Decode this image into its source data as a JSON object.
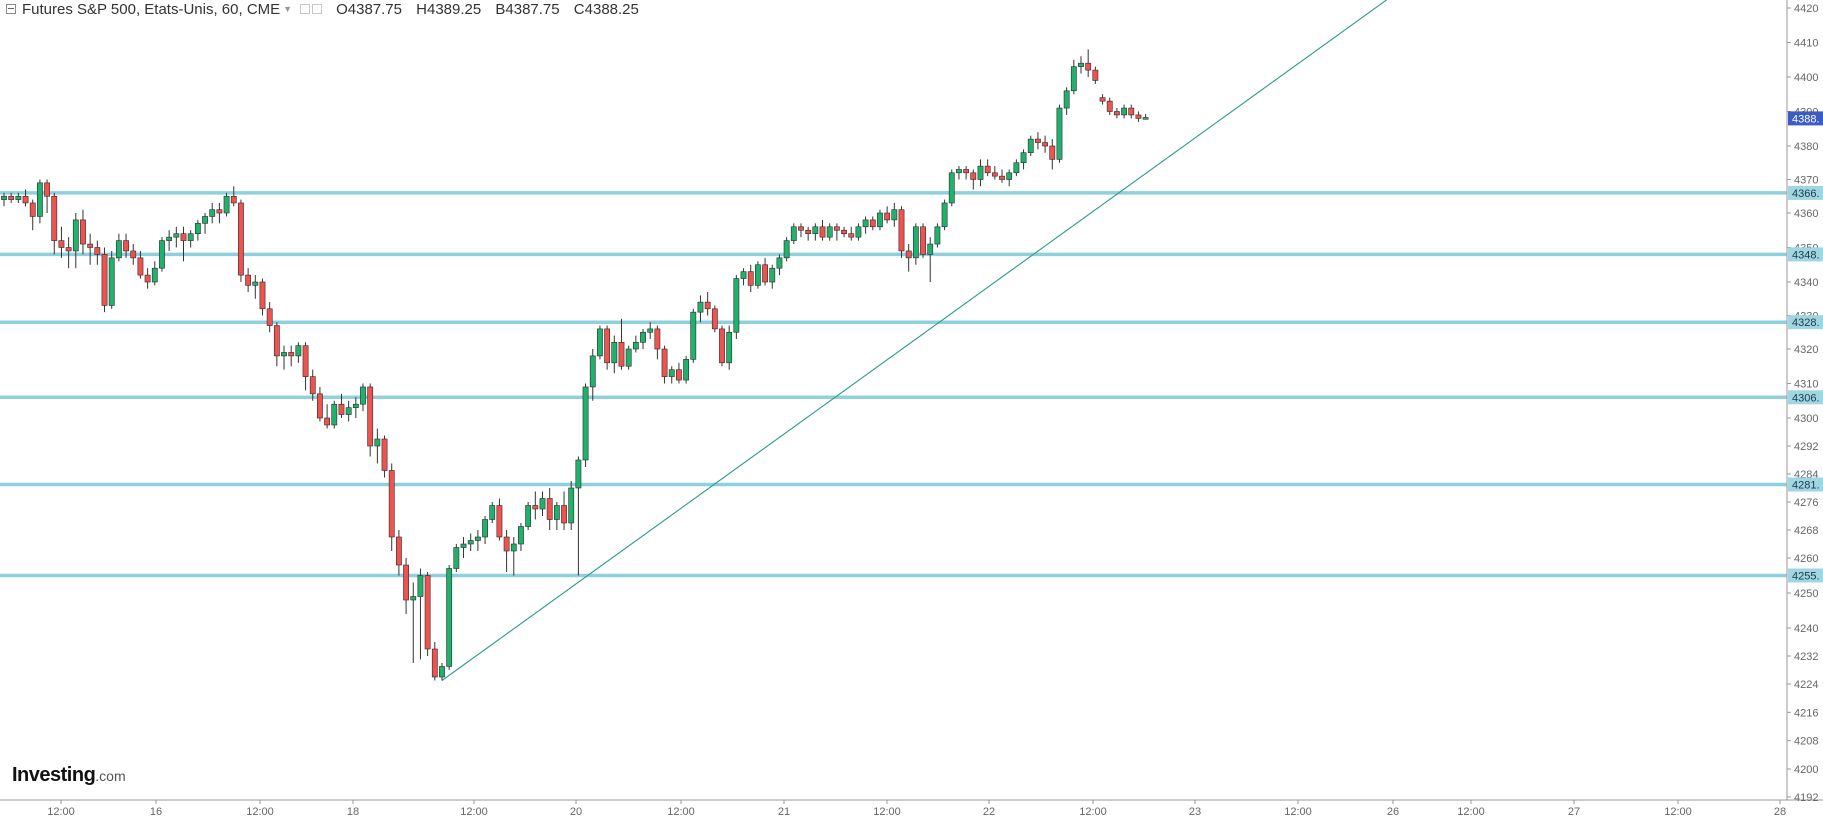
{
  "header": {
    "symbol": "Futures S&P 500, Etats-Unis, 60, CME",
    "open": "O4387.75",
    "high": "H4389.25",
    "low": "B4387.75",
    "close": "C4388.25"
  },
  "logo": {
    "name": "Investing",
    "suffix": ".com"
  },
  "chart_data": {
    "type": "candlestick",
    "y_ticks": [
      4192,
      4200,
      4208,
      4216,
      4224,
      4232,
      4240,
      4250,
      4260,
      4268,
      4276,
      4284,
      4292,
      4300,
      4310,
      4320,
      4330,
      4340,
      4350,
      4360,
      4370,
      4380,
      4390,
      4400,
      4410,
      4420
    ],
    "x_ticks": [
      "12:00",
      "16",
      "12:00",
      "18",
      "12:00",
      "20",
      "12:00",
      "21",
      "12:00",
      "22",
      "12:00",
      "23",
      "12:00",
      "26",
      "12:00",
      "27",
      "12:00",
      "28"
    ],
    "horizontal_levels": [
      {
        "value": 4366,
        "label": "4366."
      },
      {
        "value": 4348,
        "label": "4348."
      },
      {
        "value": 4328,
        "label": "4328."
      },
      {
        "value": 4306,
        "label": "4306."
      },
      {
        "value": 4281,
        "label": "4281."
      },
      {
        "value": 4255,
        "label": "4255."
      }
    ],
    "last_price": {
      "value": 4388,
      "label": "4388."
    },
    "trendline": {
      "from": {
        "bar": 61,
        "price": 4225
      },
      "to": {
        "bar": 195,
        "price": 4426
      }
    },
    "candles": [
      {
        "o": 4364,
        "h": 4366,
        "l": 4362,
        "c": 4365
      },
      {
        "o": 4365,
        "h": 4366,
        "l": 4363,
        "c": 4364
      },
      {
        "o": 4364,
        "h": 4366,
        "l": 4363,
        "c": 4365
      },
      {
        "o": 4365,
        "h": 4367,
        "l": 4362,
        "c": 4363
      },
      {
        "o": 4363,
        "h": 4364,
        "l": 4355,
        "c": 4359
      },
      {
        "o": 4359,
        "h": 4370,
        "l": 4357,
        "c": 4369
      },
      {
        "o": 4369,
        "h": 4370,
        "l": 4360,
        "c": 4365
      },
      {
        "o": 4365,
        "h": 4366,
        "l": 4348,
        "c": 4352
      },
      {
        "o": 4352,
        "h": 4356,
        "l": 4347,
        "c": 4350
      },
      {
        "o": 4350,
        "h": 4353,
        "l": 4344,
        "c": 4349
      },
      {
        "o": 4349,
        "h": 4360,
        "l": 4344,
        "c": 4358
      },
      {
        "o": 4358,
        "h": 4361,
        "l": 4348,
        "c": 4351
      },
      {
        "o": 4351,
        "h": 4354,
        "l": 4345,
        "c": 4350
      },
      {
        "o": 4350,
        "h": 4352,
        "l": 4345,
        "c": 4348
      },
      {
        "o": 4348,
        "h": 4350,
        "l": 4331,
        "c": 4333
      },
      {
        "o": 4333,
        "h": 4349,
        "l": 4332,
        "c": 4347
      },
      {
        "o": 4347,
        "h": 4354,
        "l": 4346,
        "c": 4352
      },
      {
        "o": 4352,
        "h": 4354,
        "l": 4347,
        "c": 4349
      },
      {
        "o": 4349,
        "h": 4351,
        "l": 4345,
        "c": 4347
      },
      {
        "o": 4347,
        "h": 4349,
        "l": 4341,
        "c": 4342
      },
      {
        "o": 4342,
        "h": 4344,
        "l": 4338,
        "c": 4340
      },
      {
        "o": 4340,
        "h": 4346,
        "l": 4339,
        "c": 4344
      },
      {
        "o": 4344,
        "h": 4353,
        "l": 4343,
        "c": 4352
      },
      {
        "o": 4352,
        "h": 4355,
        "l": 4349,
        "c": 4353
      },
      {
        "o": 4353,
        "h": 4356,
        "l": 4350,
        "c": 4354
      },
      {
        "o": 4354,
        "h": 4356,
        "l": 4346,
        "c": 4352
      },
      {
        "o": 4352,
        "h": 4355,
        "l": 4350,
        "c": 4354
      },
      {
        "o": 4354,
        "h": 4358,
        "l": 4352,
        "c": 4357
      },
      {
        "o": 4357,
        "h": 4360,
        "l": 4354,
        "c": 4359
      },
      {
        "o": 4359,
        "h": 4363,
        "l": 4357,
        "c": 4361
      },
      {
        "o": 4361,
        "h": 4363,
        "l": 4357,
        "c": 4360
      },
      {
        "o": 4360,
        "h": 4366,
        "l": 4359,
        "c": 4365
      },
      {
        "o": 4365,
        "h": 4368,
        "l": 4362,
        "c": 4363
      },
      {
        "o": 4363,
        "h": 4364,
        "l": 4340,
        "c": 4342
      },
      {
        "o": 4342,
        "h": 4344,
        "l": 4337,
        "c": 4339
      },
      {
        "o": 4339,
        "h": 4342,
        "l": 4335,
        "c": 4340
      },
      {
        "o": 4340,
        "h": 4341,
        "l": 4330,
        "c": 4332
      },
      {
        "o": 4332,
        "h": 4334,
        "l": 4325,
        "c": 4327
      },
      {
        "o": 4327,
        "h": 4328,
        "l": 4315,
        "c": 4318
      },
      {
        "o": 4318,
        "h": 4321,
        "l": 4314,
        "c": 4319
      },
      {
        "o": 4319,
        "h": 4321,
        "l": 4315,
        "c": 4318
      },
      {
        "o": 4318,
        "h": 4322,
        "l": 4316,
        "c": 4321
      },
      {
        "o": 4321,
        "h": 4322,
        "l": 4308,
        "c": 4312
      },
      {
        "o": 4312,
        "h": 4314,
        "l": 4305,
        "c": 4307
      },
      {
        "o": 4307,
        "h": 4309,
        "l": 4299,
        "c": 4300
      },
      {
        "o": 4300,
        "h": 4304,
        "l": 4297,
        "c": 4298
      },
      {
        "o": 4298,
        "h": 4305,
        "l": 4297,
        "c": 4304
      },
      {
        "o": 4304,
        "h": 4307,
        "l": 4300,
        "c": 4301
      },
      {
        "o": 4301,
        "h": 4305,
        "l": 4299,
        "c": 4303
      },
      {
        "o": 4303,
        "h": 4306,
        "l": 4300,
        "c": 4304
      },
      {
        "o": 4304,
        "h": 4310,
        "l": 4302,
        "c": 4309
      },
      {
        "o": 4309,
        "h": 4310,
        "l": 4289,
        "c": 4292
      },
      {
        "o": 4292,
        "h": 4297,
        "l": 4287,
        "c": 4294
      },
      {
        "o": 4294,
        "h": 4295,
        "l": 4283,
        "c": 4285
      },
      {
        "o": 4285,
        "h": 4287,
        "l": 4262,
        "c": 4266
      },
      {
        "o": 4266,
        "h": 4268,
        "l": 4255,
        "c": 4258
      },
      {
        "o": 4258,
        "h": 4260,
        "l": 4244,
        "c": 4248
      },
      {
        "o": 4248,
        "h": 4253,
        "l": 4230,
        "c": 4249
      },
      {
        "o": 4249,
        "h": 4257,
        "l": 4231,
        "c": 4255
      },
      {
        "o": 4255,
        "h": 4256,
        "l": 4232,
        "c": 4234
      },
      {
        "o": 4234,
        "h": 4236,
        "l": 4225,
        "c": 4226
      },
      {
        "o": 4226,
        "h": 4230,
        "l": 4225,
        "c": 4229
      },
      {
        "o": 4229,
        "h": 4258,
        "l": 4228,
        "c": 4257
      },
      {
        "o": 4257,
        "h": 4264,
        "l": 4256,
        "c": 4263
      },
      {
        "o": 4263,
        "h": 4266,
        "l": 4260,
        "c": 4264
      },
      {
        "o": 4264,
        "h": 4267,
        "l": 4262,
        "c": 4265
      },
      {
        "o": 4265,
        "h": 4268,
        "l": 4262,
        "c": 4266
      },
      {
        "o": 4266,
        "h": 4272,
        "l": 4264,
        "c": 4271
      },
      {
        "o": 4271,
        "h": 4276,
        "l": 4270,
        "c": 4275
      },
      {
        "o": 4275,
        "h": 4277,
        "l": 4265,
        "c": 4266
      },
      {
        "o": 4266,
        "h": 4268,
        "l": 4256,
        "c": 4262
      },
      {
        "o": 4262,
        "h": 4266,
        "l": 4255,
        "c": 4264
      },
      {
        "o": 4264,
        "h": 4270,
        "l": 4262,
        "c": 4269
      },
      {
        "o": 4269,
        "h": 4276,
        "l": 4268,
        "c": 4275
      },
      {
        "o": 4275,
        "h": 4279,
        "l": 4271,
        "c": 4274
      },
      {
        "o": 4274,
        "h": 4279,
        "l": 4272,
        "c": 4277
      },
      {
        "o": 4277,
        "h": 4280,
        "l": 4268,
        "c": 4271
      },
      {
        "o": 4271,
        "h": 4276,
        "l": 4268,
        "c": 4275
      },
      {
        "o": 4275,
        "h": 4279,
        "l": 4268,
        "c": 4270
      },
      {
        "o": 4270,
        "h": 4282,
        "l": 4268,
        "c": 4280
      },
      {
        "o": 4280,
        "h": 4289,
        "l": 4255,
        "c": 4288
      },
      {
        "o": 4288,
        "h": 4310,
        "l": 4286,
        "c": 4309
      },
      {
        "o": 4309,
        "h": 4320,
        "l": 4305,
        "c": 4318
      },
      {
        "o": 4318,
        "h": 4327,
        "l": 4317,
        "c": 4326
      },
      {
        "o": 4326,
        "h": 4327,
        "l": 4314,
        "c": 4316
      },
      {
        "o": 4316,
        "h": 4324,
        "l": 4313,
        "c": 4322
      },
      {
        "o": 4322,
        "h": 4329,
        "l": 4314,
        "c": 4315
      },
      {
        "o": 4315,
        "h": 4321,
        "l": 4314,
        "c": 4320
      },
      {
        "o": 4320,
        "h": 4324,
        "l": 4319,
        "c": 4322
      },
      {
        "o": 4322,
        "h": 4326,
        "l": 4320,
        "c": 4325
      },
      {
        "o": 4325,
        "h": 4328,
        "l": 4323,
        "c": 4326
      },
      {
        "o": 4326,
        "h": 4327,
        "l": 4317,
        "c": 4320
      },
      {
        "o": 4320,
        "h": 4321,
        "l": 4310,
        "c": 4312
      },
      {
        "o": 4312,
        "h": 4315,
        "l": 4310,
        "c": 4314
      },
      {
        "o": 4314,
        "h": 4316,
        "l": 4310,
        "c": 4311
      },
      {
        "o": 4311,
        "h": 4318,
        "l": 4310,
        "c": 4317
      },
      {
        "o": 4317,
        "h": 4332,
        "l": 4316,
        "c": 4331
      },
      {
        "o": 4331,
        "h": 4336,
        "l": 4328,
        "c": 4334
      },
      {
        "o": 4334,
        "h": 4337,
        "l": 4330,
        "c": 4332
      },
      {
        "o": 4332,
        "h": 4333,
        "l": 4325,
        "c": 4326
      },
      {
        "o": 4326,
        "h": 4327,
        "l": 4315,
        "c": 4316
      },
      {
        "o": 4316,
        "h": 4327,
        "l": 4314,
        "c": 4325
      },
      {
        "o": 4325,
        "h": 4342,
        "l": 4323,
        "c": 4341
      },
      {
        "o": 4341,
        "h": 4344,
        "l": 4339,
        "c": 4343
      },
      {
        "o": 4343,
        "h": 4345,
        "l": 4337,
        "c": 4339
      },
      {
        "o": 4339,
        "h": 4346,
        "l": 4338,
        "c": 4345
      },
      {
        "o": 4345,
        "h": 4347,
        "l": 4339,
        "c": 4340
      },
      {
        "o": 4340,
        "h": 4345,
        "l": 4338,
        "c": 4344
      },
      {
        "o": 4344,
        "h": 4348,
        "l": 4342,
        "c": 4347
      },
      {
        "o": 4347,
        "h": 4353,
        "l": 4346,
        "c": 4352
      },
      {
        "o": 4352,
        "h": 4357,
        "l": 4351,
        "c": 4356
      },
      {
        "o": 4356,
        "h": 4357,
        "l": 4353,
        "c": 4355
      },
      {
        "o": 4355,
        "h": 4356,
        "l": 4352,
        "c": 4354
      },
      {
        "o": 4354,
        "h": 4357,
        "l": 4352,
        "c": 4356
      },
      {
        "o": 4356,
        "h": 4358,
        "l": 4352,
        "c": 4353
      },
      {
        "o": 4353,
        "h": 4357,
        "l": 4352,
        "c": 4356
      },
      {
        "o": 4356,
        "h": 4357,
        "l": 4352,
        "c": 4355
      },
      {
        "o": 4355,
        "h": 4356,
        "l": 4353,
        "c": 4354
      },
      {
        "o": 4354,
        "h": 4356,
        "l": 4352,
        "c": 4353
      },
      {
        "o": 4353,
        "h": 4357,
        "l": 4352,
        "c": 4356
      },
      {
        "o": 4356,
        "h": 4359,
        "l": 4354,
        "c": 4358
      },
      {
        "o": 4358,
        "h": 4359,
        "l": 4355,
        "c": 4356
      },
      {
        "o": 4356,
        "h": 4361,
        "l": 4355,
        "c": 4360
      },
      {
        "o": 4360,
        "h": 4362,
        "l": 4357,
        "c": 4358
      },
      {
        "o": 4358,
        "h": 4363,
        "l": 4356,
        "c": 4361
      },
      {
        "o": 4361,
        "h": 4362,
        "l": 4347,
        "c": 4349
      },
      {
        "o": 4349,
        "h": 4351,
        "l": 4343,
        "c": 4347
      },
      {
        "o": 4347,
        "h": 4357,
        "l": 4345,
        "c": 4356
      },
      {
        "o": 4356,
        "h": 4357,
        "l": 4347,
        "c": 4348
      },
      {
        "o": 4348,
        "h": 4353,
        "l": 4340,
        "c": 4351
      },
      {
        "o": 4351,
        "h": 4357,
        "l": 4350,
        "c": 4356
      },
      {
        "o": 4356,
        "h": 4364,
        "l": 4355,
        "c": 4363
      },
      {
        "o": 4363,
        "h": 4373,
        "l": 4362,
        "c": 4372
      },
      {
        "o": 4372,
        "h": 4374,
        "l": 4370,
        "c": 4373
      },
      {
        "o": 4373,
        "h": 4374,
        "l": 4370,
        "c": 4372
      },
      {
        "o": 4372,
        "h": 4373,
        "l": 4367,
        "c": 4370
      },
      {
        "o": 4370,
        "h": 4376,
        "l": 4368,
        "c": 4374
      },
      {
        "o": 4374,
        "h": 4376,
        "l": 4371,
        "c": 4372
      },
      {
        "o": 4372,
        "h": 4374,
        "l": 4370,
        "c": 4371
      },
      {
        "o": 4371,
        "h": 4373,
        "l": 4369,
        "c": 4370
      },
      {
        "o": 4370,
        "h": 4373,
        "l": 4368,
        "c": 4372
      },
      {
        "o": 4372,
        "h": 4376,
        "l": 4371,
        "c": 4375
      },
      {
        "o": 4375,
        "h": 4379,
        "l": 4373,
        "c": 4378
      },
      {
        "o": 4378,
        "h": 4383,
        "l": 4377,
        "c": 4382
      },
      {
        "o": 4382,
        "h": 4384,
        "l": 4379,
        "c": 4381
      },
      {
        "o": 4381,
        "h": 4383,
        "l": 4378,
        "c": 4380
      },
      {
        "o": 4380,
        "h": 4382,
        "l": 4373,
        "c": 4376
      },
      {
        "o": 4376,
        "h": 4392,
        "l": 4375,
        "c": 4391
      },
      {
        "o": 4391,
        "h": 4397,
        "l": 4389,
        "c": 4396
      },
      {
        "o": 4396,
        "h": 4405,
        "l": 4395,
        "c": 4403
      },
      {
        "o": 4403,
        "h": 4406,
        "l": 4401,
        "c": 4404
      },
      {
        "o": 4404,
        "h": 4408,
        "l": 4400,
        "c": 4402
      },
      {
        "o": 4402,
        "h": 4403,
        "l": 4398,
        "c": 4399
      },
      {
        "o": 4394,
        "h": 4395,
        "l": 4392,
        "c": 4393
      },
      {
        "o": 4393,
        "h": 4394,
        "l": 4389,
        "c": 4390
      },
      {
        "o": 4390,
        "h": 4391,
        "l": 4388,
        "c": 4389
      },
      {
        "o": 4389,
        "h": 4392,
        "l": 4388,
        "c": 4391
      },
      {
        "o": 4391,
        "h": 4392,
        "l": 4388,
        "c": 4389
      },
      {
        "o": 4389,
        "h": 4390,
        "l": 4387,
        "c": 4388
      },
      {
        "o": 4387.75,
        "h": 4389.25,
        "l": 4387.75,
        "c": 4388.25
      }
    ]
  }
}
